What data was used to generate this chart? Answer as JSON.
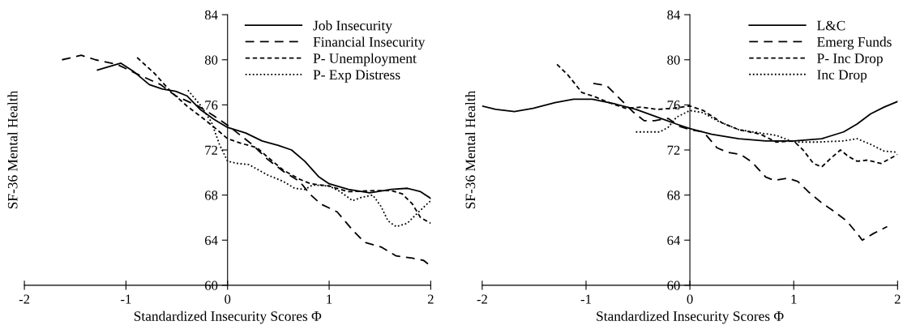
{
  "chart_data": [
    {
      "type": "line",
      "xlabel": "Standardized Insecurity Scores Φ",
      "ylabel": "SF-36 Mental Health",
      "xlim": [
        -2,
        2
      ],
      "xticks": [
        -2,
        -1,
        0,
        1,
        2
      ],
      "ylim": [
        60,
        84
      ],
      "yticks": [
        60,
        64,
        68,
        72,
        76,
        80,
        84
      ],
      "grid": false,
      "legend": "top right",
      "marker": "none",
      "series": [
        {
          "name": "Job Insecurity",
          "color": "#000000",
          "line_style": "solid",
          "x": [
            -1.28,
            -1.05,
            -0.93,
            -0.77,
            -0.64,
            -0.51,
            -0.4,
            -0.27,
            -0.13,
            0,
            0.18,
            0.34,
            0.5,
            0.63,
            0.76,
            0.9,
            1,
            1.19,
            1.4,
            1.61,
            1.77,
            1.9,
            2
          ],
          "values": [
            79.1,
            79.7,
            79.0,
            77.8,
            77.4,
            77.2,
            76.8,
            75.6,
            74.7,
            74.0,
            73.5,
            72.8,
            72.4,
            72.0,
            71.0,
            69.6,
            69.0,
            68.5,
            68.2,
            68.5,
            68.6,
            68.3,
            67.7
          ]
        },
        {
          "name": "Financial Insecurity",
          "color": "#000000",
          "line_style": "dashed",
          "x": [
            -1.63,
            -1.44,
            -1.3,
            -1.09,
            -0.88,
            -0.66,
            -0.51,
            -0.29,
            -0.13,
            0,
            0.24,
            0.39,
            0.55,
            0.71,
            0.82,
            0.92,
            1.08,
            1.24,
            1.35,
            1.51,
            1.66,
            1.82,
            1.93,
            2
          ],
          "values": [
            80.0,
            80.4,
            80.0,
            79.6,
            78.7,
            77.8,
            76.8,
            75.9,
            75.0,
            74.2,
            72.5,
            71.2,
            70.1,
            69.2,
            68.0,
            67.2,
            66.5,
            64.8,
            63.8,
            63.4,
            62.6,
            62.4,
            62.2,
            61.7
          ]
        },
        {
          "name": "P- Unemployment",
          "color": "#000000",
          "line_style": "dashed",
          "x": [
            -0.89,
            -0.72,
            -0.56,
            -0.4,
            -0.24,
            -0.13,
            0,
            0.13,
            0.29,
            0.39,
            0.55,
            0.71,
            0.82,
            1,
            1.19,
            1.46,
            1.61,
            1.72,
            1.82,
            1.9,
            2
          ],
          "values": [
            80.2,
            78.8,
            77.2,
            75.9,
            74.8,
            74.0,
            73.0,
            72.6,
            72.2,
            71.4,
            70.2,
            69.4,
            69.0,
            68.8,
            68.3,
            68.4,
            68.4,
            68.1,
            67.2,
            66.0,
            65.5
          ]
        },
        {
          "name": "P- Exp Distress",
          "color": "#000000",
          "line_style": "dotted",
          "x": [
            -0.39,
            -0.27,
            -0.16,
            -0.08,
            0,
            0.1,
            0.21,
            0.39,
            0.55,
            0.66,
            0.76,
            0.84,
            1,
            1.11,
            1.23,
            1.32,
            1.43,
            1.51,
            1.58,
            1.66,
            1.77,
            1.88,
            2
          ],
          "values": [
            77.3,
            76.0,
            74.5,
            72.5,
            71.0,
            70.8,
            70.7,
            69.8,
            69.2,
            68.6,
            68.5,
            68.9,
            68.8,
            68.3,
            67.5,
            67.8,
            68.0,
            67.0,
            65.7,
            65.2,
            65.5,
            66.5,
            67.5
          ]
        }
      ]
    },
    {
      "type": "line",
      "xlabel": "Standardized Insecurity Scores Φ",
      "ylabel": "SF-36 Mental Health",
      "xlim": [
        -2,
        2
      ],
      "xticks": [
        -2,
        -1,
        0,
        1,
        2
      ],
      "ylim": [
        60,
        84
      ],
      "yticks": [
        60,
        64,
        68,
        72,
        76,
        80,
        84
      ],
      "grid": false,
      "legend": "top right",
      "marker": "none",
      "series": [
        {
          "name": "L&C",
          "color": "#000000",
          "line_style": "solid",
          "x": [
            -2.0,
            -1.87,
            -1.69,
            -1.51,
            -1.3,
            -1.12,
            -0.94,
            -0.73,
            -0.52,
            -0.31,
            -0.13,
            0,
            0.21,
            0.47,
            0.73,
            1,
            1.27,
            1.48,
            1.61,
            1.74,
            1.87,
            2
          ],
          "values": [
            75.9,
            75.6,
            75.4,
            75.7,
            76.2,
            76.5,
            76.5,
            76.1,
            75.6,
            74.9,
            74.3,
            73.9,
            73.4,
            73.0,
            72.8,
            72.8,
            73.0,
            73.6,
            74.3,
            75.2,
            75.8,
            76.3
          ]
        },
        {
          "name": "Emerg Funds",
          "color": "#000000",
          "line_style": "dashed",
          "x": [
            -0.93,
            -0.8,
            -0.68,
            -0.55,
            -0.44,
            -0.34,
            -0.21,
            -0.1,
            0,
            0.13,
            0.26,
            0.36,
            0.49,
            0.6,
            0.73,
            0.81,
            0.94,
            1.04,
            1.14,
            1.27,
            1.38,
            1.51,
            1.61,
            1.66,
            1.77,
            1.9
          ],
          "values": [
            77.9,
            77.7,
            76.6,
            75.4,
            74.6,
            74.6,
            74.8,
            74.1,
            73.8,
            73.6,
            72.2,
            71.8,
            71.6,
            70.9,
            69.6,
            69.3,
            69.5,
            69.2,
            68.3,
            67.3,
            66.6,
            65.7,
            64.6,
            64.0,
            64.6,
            65.2
          ]
        },
        {
          "name": "P- Inc Drop",
          "color": "#000000",
          "line_style": "dashed",
          "x": [
            -1.28,
            -1.17,
            -1.04,
            -0.91,
            -0.75,
            -0.62,
            -0.47,
            -0.31,
            -0.16,
            0,
            0.13,
            0.31,
            0.47,
            0.68,
            0.83,
            1,
            1.09,
            1.19,
            1.27,
            1.35,
            1.45,
            1.53,
            1.61,
            1.71,
            1.84,
            2
          ],
          "values": [
            79.6,
            78.6,
            77.1,
            76.7,
            76.1,
            75.7,
            75.8,
            75.6,
            75.7,
            75.9,
            75.5,
            74.4,
            73.8,
            73.4,
            72.7,
            72.8,
            72.0,
            70.8,
            70.5,
            71.2,
            72.0,
            71.4,
            71.0,
            71.1,
            70.8,
            71.6
          ]
        },
        {
          "name": "Inc Drop",
          "color": "#000000",
          "line_style": "dotted",
          "x": [
            -0.52,
            -0.29,
            -0.21,
            -0.13,
            0,
            0.13,
            0.26,
            0.47,
            0.68,
            0.83,
            1,
            1.22,
            1.48,
            1.61,
            1.74,
            1.87,
            2
          ],
          "values": [
            73.6,
            73.6,
            74.0,
            74.9,
            75.5,
            75.3,
            74.6,
            73.8,
            73.5,
            73.3,
            72.7,
            72.7,
            72.8,
            73.0,
            72.5,
            71.9,
            71.8
          ]
        }
      ]
    }
  ]
}
